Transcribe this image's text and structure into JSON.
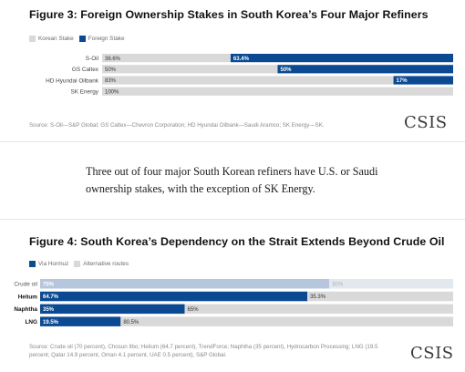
{
  "colors": {
    "foreign": "#0b4a92",
    "korean": "#d9d9d9",
    "hormuz": "#0b4a92",
    "alternative": "#d9d9d9",
    "crude_hormuz": "#b6c7dd",
    "crude_alt": "#e3e8ee"
  },
  "figure1": {
    "title": "Figure 3: Foreign Ownership Stakes in South Korea’s Four Major Refiners",
    "legend": [
      "Korean Stake",
      "Foreign Stake"
    ],
    "source": "Source: S-Oil—S&P Global; GS Caltex—Chevron Corporation; HD Hyundai Oilbank—Saudi Aramco; SK Energy—SK.",
    "logo": "CSIS"
  },
  "narrative": "Three out of four major South Korean refiners have U.S. or Saudi ownership stakes, with the exception of SK Energy.",
  "figure2": {
    "title": "Figure 4: South Korea’s Dependency on the Strait Extends Beyond Crude Oil",
    "legend": [
      "Via Hormuz",
      "Alternative routes"
    ],
    "source": "Source: Crude oil (70 percent), Chosun Ilbo; Helium (64.7 percent), TrendForce; Naphtha (35 percent), Hydrocarbon Processing; LNG (19.5 percent; Qatar 14.9 percent, Oman 4.1 percent, UAE 0.5 percent), S&P Global.",
    "logo": "CSIS"
  },
  "chart_data": [
    {
      "type": "bar",
      "orientation": "horizontal",
      "stacked": true,
      "title": "Figure 3: Foreign Ownership Stakes in South Korea’s Four Major Refiners",
      "categories": [
        "S-Oil",
        "GS Caltex",
        "HD Hyundai Oilbank",
        "SK Energy"
      ],
      "series": [
        {
          "name": "Korean Stake",
          "values": [
            36.6,
            50,
            83,
            100
          ],
          "labels": [
            "36.6%",
            "50%",
            "83%",
            "100%"
          ]
        },
        {
          "name": "Foreign Stake",
          "values": [
            63.4,
            50,
            17,
            0
          ],
          "labels": [
            "63.4%",
            "50%",
            "17%",
            ""
          ]
        }
      ],
      "xlim": [
        0,
        100
      ],
      "legend_position": "top-left"
    },
    {
      "type": "bar",
      "orientation": "horizontal",
      "stacked": true,
      "title": "Figure 4: South Korea’s Dependency on the Strait Extends Beyond Crude Oil",
      "categories": [
        "Crude oil",
        "Helium",
        "Naphtha",
        "LNG"
      ],
      "series": [
        {
          "name": "Via Hormuz",
          "values": [
            70,
            64.7,
            35,
            19.5
          ],
          "labels": [
            "70%",
            "64.7%",
            "35%",
            "19.5%"
          ]
        },
        {
          "name": "Alternative routes",
          "values": [
            30,
            35.3,
            65,
            80.5
          ],
          "labels": [
            "30%",
            "35.3%",
            "65%",
            "80.5%"
          ]
        }
      ],
      "xlim": [
        0,
        100
      ],
      "legend_position": "top-left"
    }
  ]
}
